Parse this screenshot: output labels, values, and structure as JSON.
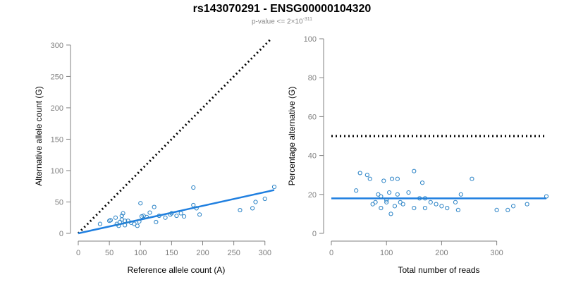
{
  "title": "rs143070291 - ENSG00000104320",
  "subtitle": {
    "prefix": "p-value <= 2×10",
    "exponent": "-311"
  },
  "colors": {
    "points": "#2b83c6",
    "fit_line": "#1f7fe0",
    "reference_line": "#000000",
    "axis": "#808080"
  },
  "chart_data": [
    {
      "type": "scatter",
      "xlabel": "Reference allele count (A)",
      "ylabel": "Alternative allele count (G)",
      "xlim": [
        0,
        315
      ],
      "ylim": [
        0,
        310
      ],
      "xticks": [
        0,
        50,
        100,
        150,
        200,
        250,
        300
      ],
      "yticks": [
        0,
        50,
        100,
        150,
        200,
        250,
        300
      ],
      "x": [
        35,
        50,
        52,
        62,
        65,
        67,
        70,
        72,
        75,
        80,
        85,
        90,
        95,
        98,
        100,
        102,
        105,
        110,
        115,
        122,
        125,
        130,
        140,
        148,
        150,
        158,
        165,
        170,
        185,
        185,
        190,
        195,
        260,
        280,
        285,
        300,
        315,
        70,
        75,
        60
      ],
      "y": [
        15,
        20,
        21,
        15,
        12,
        18,
        28,
        32,
        13,
        20,
        17,
        15,
        12,
        19,
        48,
        27,
        28,
        26,
        33,
        42,
        18,
        28,
        25,
        30,
        32,
        28,
        32,
        27,
        73,
        45,
        40,
        30,
        37,
        40,
        50,
        55,
        74,
        22,
        20,
        25
      ],
      "fit_line": {
        "x": [
          0,
          315
        ],
        "y": [
          0,
          69
        ]
      },
      "reference_line": {
        "x": [
          0,
          310
        ],
        "y": [
          0,
          310
        ]
      }
    },
    {
      "type": "scatter",
      "xlabel": "Total number of reads",
      "ylabel": "Percentage alternative (G)",
      "xlim": [
        0,
        390
      ],
      "ylim": [
        0,
        100
      ],
      "xticks": [
        0,
        100,
        200,
        300
      ],
      "yticks": [
        0,
        20,
        40,
        60,
        80,
        100
      ],
      "x": [
        45,
        52,
        65,
        70,
        75,
        80,
        85,
        90,
        95,
        100,
        105,
        108,
        110,
        115,
        120,
        125,
        130,
        140,
        150,
        160,
        165,
        170,
        180,
        190,
        200,
        210,
        225,
        230,
        235,
        255,
        300,
        320,
        330,
        355,
        390,
        120,
        150,
        100,
        170,
        90
      ],
      "y": [
        22,
        31,
        30,
        28,
        15,
        16,
        20,
        13,
        27,
        17,
        21,
        10,
        28,
        14,
        28,
        16,
        15,
        21,
        32,
        18,
        26,
        13,
        16,
        15,
        14,
        13,
        16,
        12,
        20,
        28,
        12,
        12,
        14,
        15,
        19,
        20,
        13,
        16,
        18,
        19
      ],
      "fit_line": {
        "x": [
          0,
          390
        ],
        "y": [
          18,
          18
        ]
      },
      "reference_line": {
        "x": [
          0,
          390
        ],
        "y": [
          50,
          50
        ]
      }
    }
  ]
}
